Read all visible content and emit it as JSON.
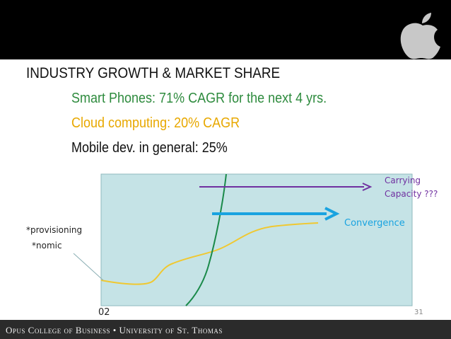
{
  "slide": {
    "title": "INDUSTRY GROWTH & MARKET SHARE",
    "bullets": [
      "Smart Phones: 71% CAGR for the next 4 yrs.",
      "Cloud computing:  20% CAGR",
      "Mobile dev. in general: 25%"
    ],
    "diagram": {
      "carrying_capacity": [
        "Carrying",
        "Capacity ???"
      ],
      "convergence": "Convergence",
      "provisioning": "*provisioning",
      "nomic": "*nomic",
      "corner_label": "02"
    },
    "page_number": "31",
    "footer": "Opus College of Business • University of St. Thomas"
  }
}
